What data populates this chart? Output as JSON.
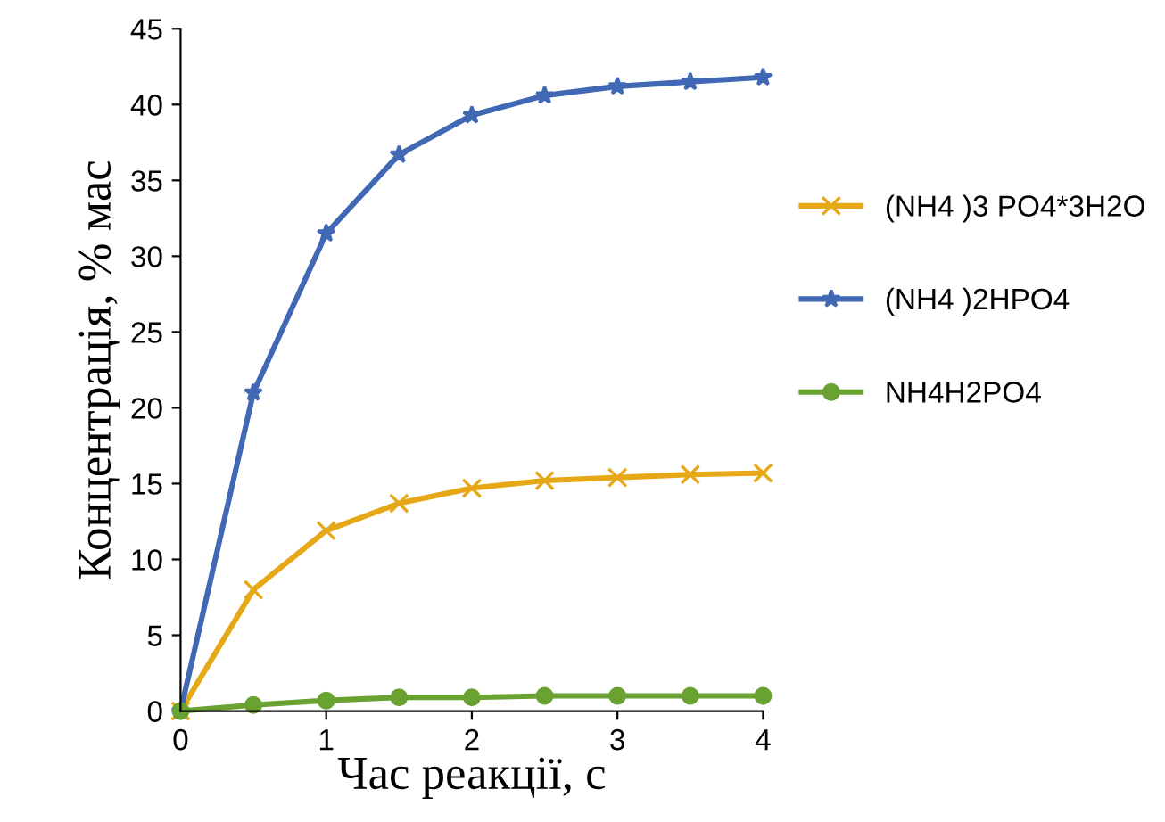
{
  "chart_data": {
    "type": "line",
    "xlabel": "Час реакції, с",
    "ylabel": "Концентрація, % мас",
    "x": [
      0,
      0.5,
      1,
      1.5,
      2,
      2.5,
      3,
      3.5,
      4
    ],
    "xlim": [
      0,
      4
    ],
    "xticks": [
      0,
      1,
      2,
      3,
      4
    ],
    "ylim": [
      0,
      45
    ],
    "yticks": [
      0,
      5,
      10,
      15,
      20,
      25,
      30,
      35,
      40,
      45
    ],
    "grid": false,
    "legend": "right",
    "series": [
      {
        "name": "(NH4 )3 PO4*3H2O",
        "color": "#e6a817",
        "marker": "cross",
        "values": [
          0,
          8,
          11.9,
          13.7,
          14.7,
          15.2,
          15.4,
          15.6,
          15.7
        ]
      },
      {
        "name": "(NH4 )2HPO4",
        "color": "#4068b5",
        "marker": "star",
        "values": [
          0,
          21,
          31.5,
          36.7,
          39.3,
          40.6,
          41.2,
          41.5,
          41.8
        ]
      },
      {
        "name": "NH4H2PO4",
        "color": "#6aa232",
        "marker": "circle",
        "values": [
          0,
          0.4,
          0.7,
          0.9,
          0.9,
          1,
          1,
          1,
          1
        ]
      }
    ]
  }
}
